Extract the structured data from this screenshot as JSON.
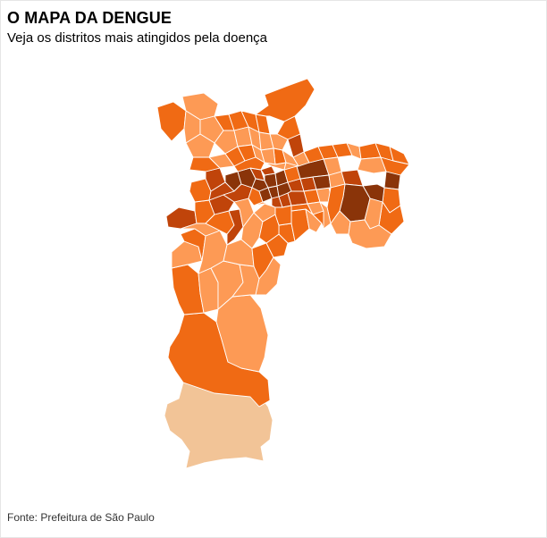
{
  "header": {
    "title": "O MAPA DA DENGUE",
    "subtitle": "Veja os distritos mais atingidos pela doença"
  },
  "footer": {
    "source": "Fonte: Prefeitura de São Paulo"
  },
  "map": {
    "region": "São Paulo",
    "colors": {
      "very_high": "#8a3409",
      "high": "#c0440a",
      "medium": "#f06a14",
      "low": "#fd9a55",
      "very_low": "#f2c497",
      "border": "#ffffff"
    }
  }
}
